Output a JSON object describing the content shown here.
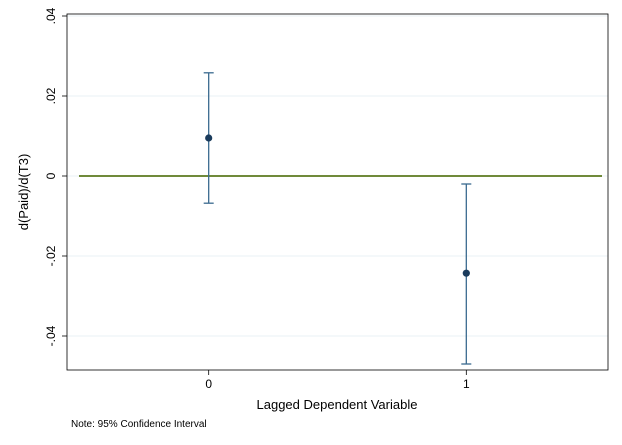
{
  "chart_data": {
    "type": "scatter",
    "subtype": "point estimates with 95% confidence intervals",
    "title": "",
    "xlabel": "Lagged Dependent Variable",
    "ylabel": "d(Paid)/d(T3)",
    "note": "Note: 95% Confidence Interval",
    "categories": [
      "0",
      "1"
    ],
    "x": [
      0,
      1
    ],
    "estimates": [
      0.0095,
      -0.0243
    ],
    "ci_lower": [
      -0.0068,
      -0.047
    ],
    "ci_upper": [
      0.0258,
      -0.002
    ],
    "xlim": [
      -0.55,
      1.55
    ],
    "ylim": [
      -0.0485,
      0.0405
    ],
    "y_ticks": [
      0.04,
      0.02,
      0,
      -0.02,
      -0.04
    ],
    "y_tick_labels": [
      ".04",
      ".02",
      "0",
      "-.02",
      "-.04"
    ],
    "reference_line": {
      "y": 0
    },
    "grid": true,
    "legend": "none",
    "colors": {
      "marker": "#1a3b5c",
      "ci": "#3a6a8f",
      "reference_line": "#5b7a1e",
      "grid": "#eaf0f4",
      "axis": "#000000"
    }
  }
}
